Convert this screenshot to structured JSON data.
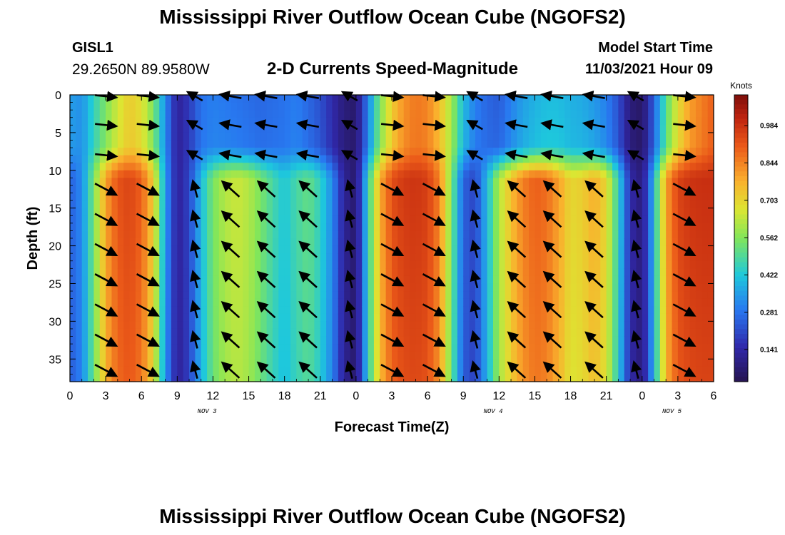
{
  "header": {
    "title": "Mississippi River Outflow Ocean Cube (NGOFS2)",
    "station": "GISL1",
    "coords": "29.2650N  89.9580W",
    "subtitle": "2-D Currents Speed-Magnitude",
    "model_start_label": "Model Start Time",
    "model_start_value": "11/03/2021 Hour 09"
  },
  "footer": {
    "title": "Mississippi River Outflow Ocean Cube (NGOFS2)"
  },
  "chart_data": {
    "type": "heatmap",
    "xlabel": "Forecast Time(Z)",
    "ylabel": "Depth (ft)",
    "x_ticks": [
      "0",
      "3",
      "6",
      "9",
      "12",
      "15",
      "18",
      "21",
      "0",
      "3",
      "6",
      "9",
      "12",
      "15",
      "18",
      "21",
      "0",
      "3",
      "6"
    ],
    "x_tick_hours": [
      0,
      3,
      6,
      9,
      12,
      15,
      18,
      21,
      24,
      27,
      30,
      33,
      36,
      39,
      42,
      45,
      48,
      51,
      54
    ],
    "date_labels": [
      {
        "label": "NOV 3",
        "hour": 11.5
      },
      {
        "label": "NOV 4",
        "hour": 35.5
      },
      {
        "label": "NOV 5",
        "hour": 50.5
      }
    ],
    "xlim": [
      0,
      54
    ],
    "ylim": [
      38,
      0
    ],
    "y_ticks": [
      0,
      5,
      10,
      15,
      20,
      25,
      30,
      35
    ],
    "colorbar": {
      "unit": "Knots",
      "ticks": [
        "0.984",
        "0.844",
        "0.703",
        "0.562",
        "0.422",
        "0.281",
        "0.141"
      ],
      "tick_values": [
        0.984,
        0.844,
        0.703,
        0.562,
        0.422,
        0.281,
        0.141
      ],
      "range": [
        0.02,
        1.1
      ]
    },
    "speed_profile": {
      "hours": [
        0,
        1,
        2,
        3,
        4,
        5,
        6,
        7,
        8,
        9,
        10,
        11,
        12,
        13,
        14,
        15,
        16,
        17,
        18,
        19,
        20,
        21,
        22,
        23,
        24,
        25,
        26,
        27,
        28,
        29,
        30,
        31,
        32,
        33,
        34,
        35,
        36,
        37,
        38,
        39,
        40,
        41,
        42,
        43,
        44,
        45,
        46,
        47,
        48,
        49,
        50,
        51,
        52,
        53,
        54
      ],
      "surface": [
        0.35,
        0.33,
        0.45,
        0.55,
        0.65,
        0.72,
        0.68,
        0.55,
        0.32,
        0.12,
        0.18,
        0.28,
        0.3,
        0.29,
        0.28,
        0.27,
        0.26,
        0.27,
        0.28,
        0.3,
        0.26,
        0.22,
        0.15,
        0.08,
        0.06,
        0.3,
        0.55,
        0.72,
        0.82,
        0.86,
        0.84,
        0.75,
        0.6,
        0.4,
        0.3,
        0.26,
        0.24,
        0.3,
        0.35,
        0.38,
        0.4,
        0.4,
        0.38,
        0.37,
        0.34,
        0.3,
        0.22,
        0.08,
        0.05,
        0.25,
        0.5,
        0.68,
        0.8,
        0.85,
        0.9
      ],
      "deep": [
        0.25,
        0.32,
        0.55,
        0.8,
        0.92,
        0.95,
        0.9,
        0.72,
        0.35,
        0.12,
        0.2,
        0.4,
        0.55,
        0.62,
        0.65,
        0.62,
        0.55,
        0.48,
        0.42,
        0.48,
        0.52,
        0.45,
        0.32,
        0.12,
        0.06,
        0.45,
        0.78,
        0.93,
        0.97,
        0.98,
        0.96,
        0.85,
        0.55,
        0.25,
        0.2,
        0.4,
        0.62,
        0.75,
        0.85,
        0.9,
        0.88,
        0.8,
        0.7,
        0.72,
        0.78,
        0.7,
        0.45,
        0.15,
        0.08,
        0.4,
        0.8,
        0.95,
        0.98,
        0.99,
        0.99
      ]
    }
  }
}
